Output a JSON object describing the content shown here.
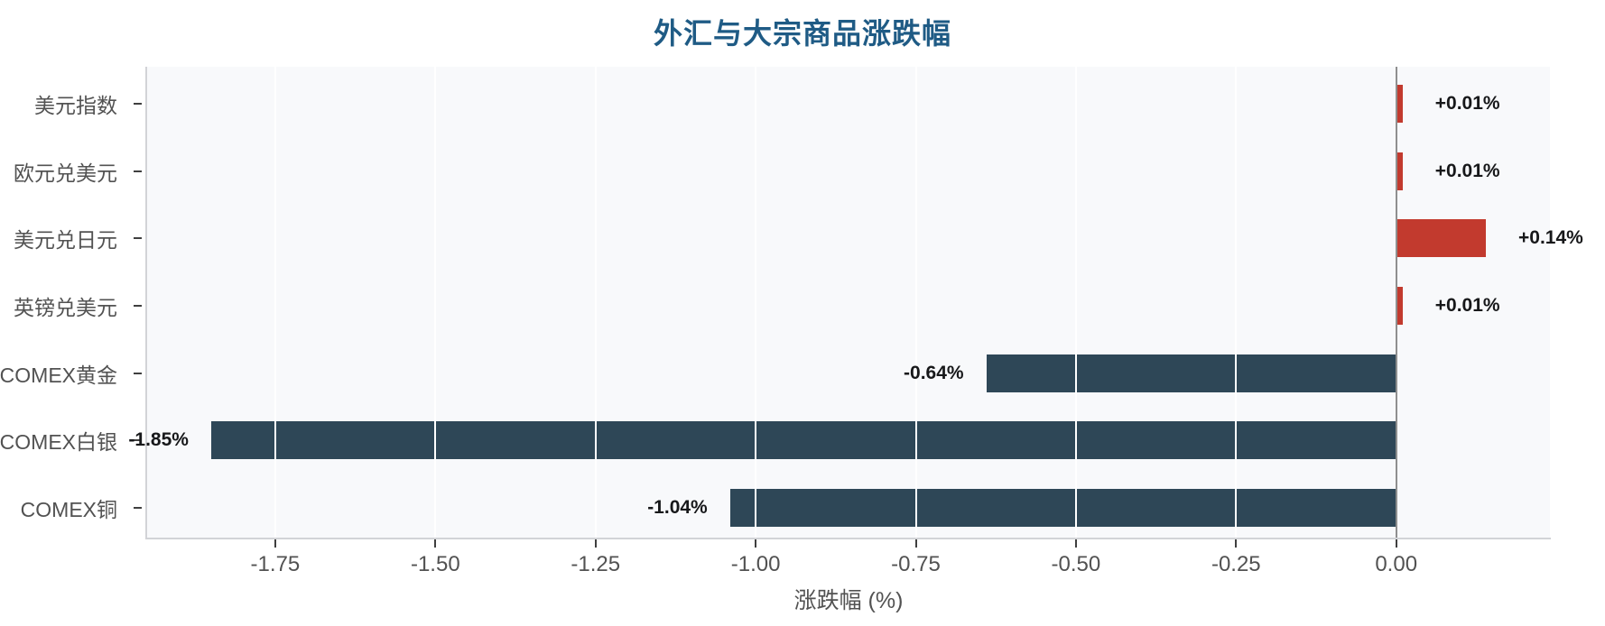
{
  "title": "外汇与大宗商品涨跌幅",
  "colors": {
    "title": "#1f5b85",
    "positive_bar": "#c23a2e",
    "negative_bar": "#2e4757",
    "plot_bg": "#f8f9fb",
    "gridline": "#ffffff",
    "zero_line": "#8f8f8f",
    "spine": "#d2d3d7",
    "tick_mark": "#3f3f3f",
    "axis_text": "#525252",
    "value_label_text": "#17181a"
  },
  "chart_data": {
    "type": "bar",
    "orientation": "horizontal",
    "title": "外汇与大宗商品涨跌幅",
    "categories": [
      "美元指数",
      "欧元兑美元",
      "美元兑日元",
      "英镑兑美元",
      "COMEX黄金",
      "COMEX白银",
      "COMEX铜"
    ],
    "values": [
      0.01,
      0.01,
      0.14,
      0.01,
      -0.64,
      -1.85,
      -1.04
    ],
    "value_labels": [
      "+0.01%",
      "+0.01%",
      "+0.14%",
      "+0.01%",
      "-0.64%",
      "-1.85%",
      "-1.04%"
    ],
    "xlabel": "涨跌幅 (%)",
    "ylabel": "",
    "xlim": [
      -1.95,
      0.24
    ],
    "xticks": [
      -1.75,
      -1.5,
      -1.25,
      -1.0,
      -0.75,
      -0.5,
      -0.25,
      0.0
    ],
    "xtick_labels": [
      "-1.75",
      "-1.50",
      "-1.25",
      "-1.00",
      "-0.75",
      "-0.50",
      "-0.25",
      "0.00"
    ],
    "grid": true,
    "zero_line": true,
    "legend": false
  }
}
